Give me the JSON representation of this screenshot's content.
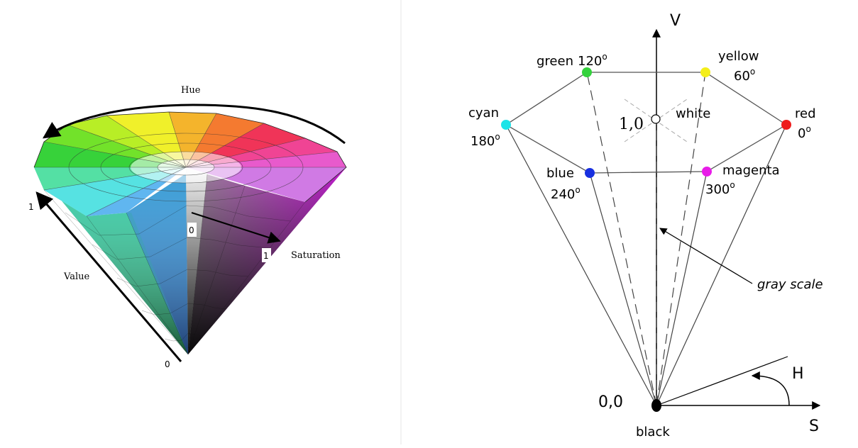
{
  "left_diagram": {
    "hue_label": "Hue",
    "value_label": "Value",
    "saturation_label": "Saturation",
    "value_top_tick": "1",
    "value_bottom_tick": "0",
    "sat_zero_tick": "0",
    "sat_one_tick": "1"
  },
  "right_diagram": {
    "v_axis_label": "V",
    "s_axis_label": "S",
    "h_angle_label": "H",
    "origin_label": "0,0",
    "black_label": "black",
    "white_coord_label": "1,0",
    "white_label": "white",
    "gray_scale_label": "gray scale",
    "vertices": [
      {
        "id": "red",
        "name": "red",
        "angle": "0",
        "color": "#ee1c1c"
      },
      {
        "id": "yellow",
        "name": "yellow",
        "angle": "60",
        "color": "#f4ee1a"
      },
      {
        "id": "green",
        "name": "green",
        "angle": "120",
        "color": "#34d23c"
      },
      {
        "id": "cyan",
        "name": "cyan",
        "angle": "180",
        "color": "#1ce4e8"
      },
      {
        "id": "blue",
        "name": "blue",
        "angle": "240",
        "color": "#1830e0"
      },
      {
        "id": "magenta",
        "name": "magenta",
        "angle": "300",
        "color": "#e81ce8"
      }
    ],
    "degree_sign": "o"
  }
}
